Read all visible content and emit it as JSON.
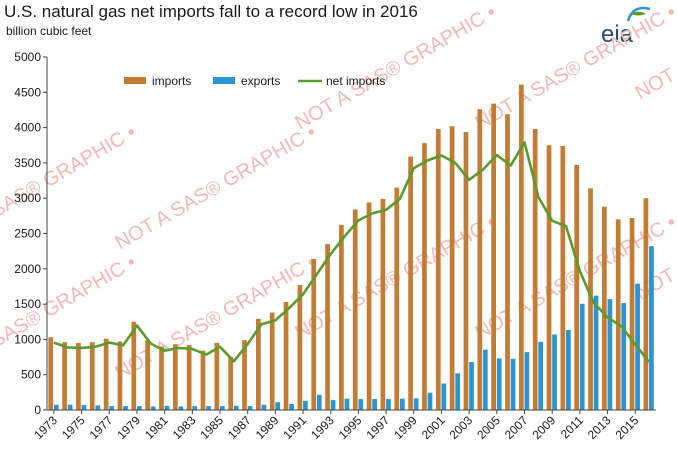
{
  "header": {
    "title": "U.S. natural gas net imports fall to a record low in 2016",
    "unit_label": "billion cubic feet",
    "logo_text": "eia"
  },
  "watermark": {
    "text": "NOT A SAS® GRAPHIC •",
    "color": "#f2b8b8"
  },
  "colors": {
    "imports": "#c27c33",
    "exports": "#2b95d3",
    "net_imports": "#5b9a2c",
    "axis": "#444444"
  },
  "chart_data": {
    "type": "bar",
    "title": "U.S. natural gas net imports fall to a record low in 2016",
    "ylabel": "billion cubic feet",
    "xlabel": "",
    "ylim": [
      0,
      5000
    ],
    "yticks": [
      0,
      500,
      1000,
      1500,
      2000,
      2500,
      3000,
      3500,
      4000,
      4500,
      5000
    ],
    "grid": false,
    "legend_position": "top",
    "categories": [
      "1973",
      "1974",
      "1975",
      "1976",
      "1977",
      "1978",
      "1979",
      "1980",
      "1981",
      "1982",
      "1983",
      "1984",
      "1985",
      "1986",
      "1987",
      "1988",
      "1989",
      "1990",
      "1991",
      "1992",
      "1993",
      "1994",
      "1995",
      "1996",
      "1997",
      "1998",
      "1999",
      "2000",
      "2001",
      "2002",
      "2003",
      "2004",
      "2005",
      "2006",
      "2007",
      "2008",
      "2009",
      "2010",
      "2011",
      "2012",
      "2013",
      "2014",
      "2015",
      "2016"
    ],
    "xtick_labels": [
      "1973",
      "1975",
      "1977",
      "1979",
      "1981",
      "1983",
      "1985",
      "1987",
      "1989",
      "1991",
      "1993",
      "1995",
      "1997",
      "1999",
      "2001",
      "2003",
      "2005",
      "2007",
      "2009",
      "2011",
      "2013",
      "2015"
    ],
    "series": [
      {
        "name": "imports",
        "type": "bar",
        "values": [
          1030,
          960,
          950,
          960,
          1010,
          970,
          1250,
          990,
          900,
          930,
          920,
          840,
          950,
          750,
          990,
          1290,
          1380,
          1530,
          1770,
          2140,
          2350,
          2620,
          2840,
          2940,
          2990,
          3150,
          3590,
          3780,
          3980,
          4020,
          3940,
          4260,
          4340,
          4190,
          4610,
          3980,
          3750,
          3740,
          3470,
          3140,
          2880,
          2700,
          2720,
          3000
        ]
      },
      {
        "name": "exports",
        "type": "bar",
        "values": [
          75,
          75,
          70,
          65,
          55,
          55,
          55,
          50,
          60,
          50,
          55,
          55,
          55,
          60,
          55,
          75,
          110,
          85,
          130,
          215,
          140,
          160,
          155,
          155,
          155,
          160,
          165,
          245,
          375,
          520,
          680,
          855,
          730,
          725,
          820,
          965,
          1070,
          1135,
          1505,
          1620,
          1570,
          1515,
          1790,
          2320
        ]
      },
      {
        "name": "net imports",
        "type": "line",
        "values": [
          955,
          885,
          880,
          895,
          955,
          915,
          1195,
          940,
          840,
          880,
          865,
          785,
          895,
          690,
          935,
          1215,
          1270,
          1445,
          1640,
          1925,
          2210,
          2460,
          2685,
          2785,
          2835,
          2990,
          3425,
          3535,
          3605,
          3500,
          3260,
          3405,
          3610,
          3465,
          3790,
          3015,
          2680,
          2605,
          1965,
          1520,
          1310,
          1185,
          930,
          680
        ]
      }
    ]
  }
}
